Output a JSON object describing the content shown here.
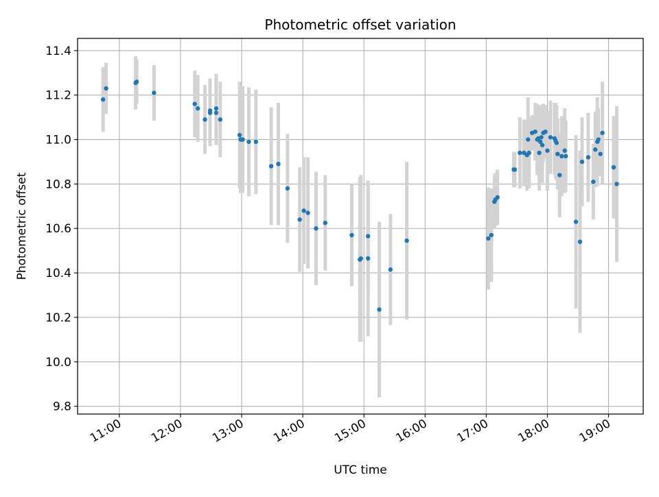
{
  "chart_data": {
    "type": "scatter",
    "title": "Photometric offset variation",
    "xlabel": "UTC time",
    "ylabel": "Photometric offset",
    "x_axis_type": "time",
    "xlim": [
      "10:19",
      "19:34"
    ],
    "ylim": [
      9.765,
      11.455
    ],
    "x_ticks": [
      "11:00",
      "12:00",
      "13:00",
      "14:00",
      "15:00",
      "16:00",
      "17:00",
      "18:00",
      "19:00"
    ],
    "y_ticks": [
      "9.8",
      "10.0",
      "10.2",
      "10.4",
      "10.6",
      "10.8",
      "11.0",
      "11.2",
      "11.4"
    ],
    "grid": true,
    "legend": false,
    "colors": {
      "points": "#1f77b4",
      "error_bars": "#d3d3d3",
      "grid": "#b0b0b0",
      "axes": "#000000"
    },
    "series": [
      {
        "x": [
          "10:44",
          "10:47",
          "11:16",
          "11:17",
          "11:34",
          "12:14",
          "12:17",
          "12:24",
          "12:29",
          "12:29",
          "12:35",
          "12:35",
          "12:39",
          "12:58",
          "12:59",
          "13:00",
          "13:01",
          "13:07",
          "13:14",
          "13:29",
          "13:36",
          "13:45",
          "13:57",
          "14:01",
          "14:05",
          "14:13",
          "14:22",
          "14:48",
          "14:56",
          "14:57",
          "15:04",
          "15:04",
          "15:15",
          "15:26",
          "15:42",
          "17:02",
          "17:05",
          "17:08",
          "17:09",
          "17:11",
          "17:27",
          "17:28",
          "17:33",
          "17:37",
          "17:40",
          "17:41",
          "17:42",
          "17:45",
          "17:48",
          "17:50",
          "17:51",
          "17:52",
          "17:53",
          "17:54",
          "17:55",
          "17:56",
          "17:58",
          "18:00",
          "18:03",
          "18:07",
          "18:08",
          "18:09",
          "18:10",
          "18:12",
          "18:14",
          "18:17",
          "18:18",
          "18:28",
          "18:32",
          "18:34",
          "18:40",
          "18:45",
          "18:47",
          "18:49",
          "18:50",
          "18:52",
          "18:54",
          "19:05",
          "19:08"
        ],
        "y": [
          11.18,
          11.23,
          11.255,
          11.26,
          11.21,
          11.16,
          11.14,
          11.09,
          11.12,
          11.13,
          11.14,
          11.12,
          11.09,
          11.02,
          11.0,
          11.0,
          11.0,
          10.99,
          10.99,
          10.88,
          10.89,
          10.78,
          10.64,
          10.68,
          10.67,
          10.6,
          10.625,
          10.57,
          10.46,
          10.465,
          10.565,
          10.465,
          10.235,
          10.415,
          10.545,
          10.555,
          10.57,
          10.72,
          10.73,
          10.74,
          10.865,
          10.865,
          10.94,
          10.94,
          10.93,
          11.0,
          10.94,
          11.03,
          11.035,
          11.0,
          11.005,
          10.94,
          10.99,
          11.01,
          10.975,
          11.03,
          11.035,
          10.95,
          11.01,
          11.005,
          10.995,
          10.985,
          10.935,
          10.84,
          10.925,
          10.95,
          10.925,
          10.63,
          10.54,
          10.9,
          10.92,
          10.81,
          10.955,
          10.99,
          11.0,
          10.935,
          11.03,
          10.875,
          10.8
        ],
        "error": [
          0.145,
          0.115,
          0.12,
          0.1,
          0.125,
          0.15,
          0.15,
          0.155,
          0.15,
          0.145,
          0.155,
          0.145,
          0.17,
          0.24,
          0.24,
          0.24,
          0.24,
          0.245,
          0.235,
          0.265,
          0.275,
          0.245,
          0.235,
          0.24,
          0.25,
          0.255,
          0.215,
          0.23,
          0.37,
          0.375,
          0.25,
          0.35,
          0.395,
          0.25,
          0.355,
          0.23,
          0.21,
          0.12,
          0.12,
          0.125,
          0.08,
          0.08,
          0.16,
          0.15,
          0.16,
          0.19,
          0.16,
          0.08,
          0.13,
          0.16,
          0.15,
          0.17,
          0.16,
          0.145,
          0.17,
          0.13,
          0.12,
          0.18,
          0.165,
          0.16,
          0.17,
          0.17,
          0.16,
          0.19,
          0.18,
          0.19,
          0.16,
          0.39,
          0.41,
          0.2,
          0.2,
          0.17,
          0.17,
          0.2,
          0.14,
          0.1,
          0.23,
          0.23,
          0.35
        ]
      }
    ]
  }
}
